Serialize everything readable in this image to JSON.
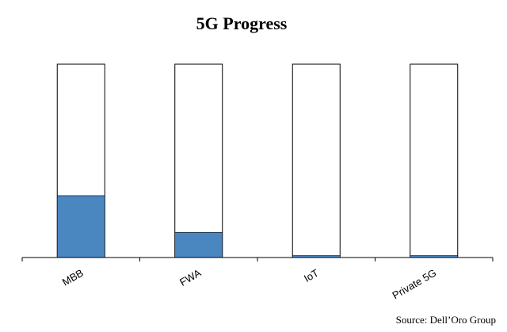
{
  "chart_data": {
    "type": "bar",
    "title": "5G Progress",
    "categories": [
      "MBB",
      "FWA",
      "IoT",
      "Private 5G"
    ],
    "values": [
      32,
      13,
      1,
      1
    ],
    "ylim": [
      0,
      100
    ],
    "xlabel": "",
    "ylabel": "",
    "grid": false,
    "legend": "none",
    "source": "Source: Dell’Oro Group",
    "colors": {
      "fill": "#4a86c0",
      "track_border": "#000000",
      "track_fill": "#ffffff"
    }
  }
}
